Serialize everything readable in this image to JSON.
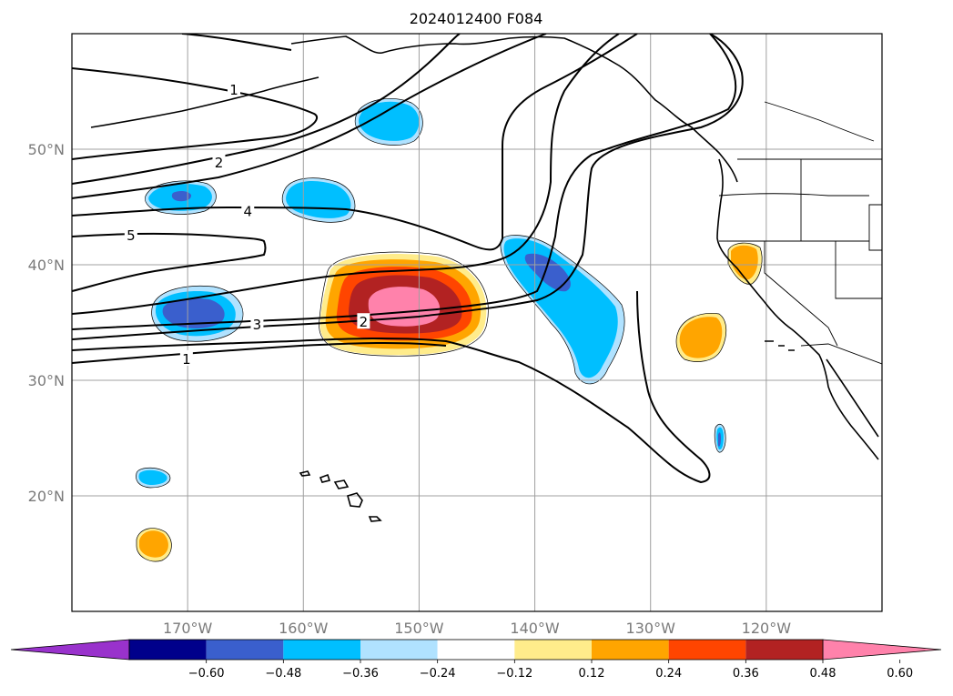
{
  "title": "2024012400 F084",
  "map": {
    "lon_range": [
      -180,
      -110
    ],
    "lat_range": [
      10,
      60
    ],
    "lat_ticks": [
      {
        "v": 20,
        "label": "20°N"
      },
      {
        "v": 30,
        "label": "30°N"
      },
      {
        "v": 40,
        "label": "40°N"
      },
      {
        "v": 50,
        "label": "50°N"
      }
    ],
    "lon_ticks": [
      {
        "v": -170,
        "label": "170°W"
      },
      {
        "v": -160,
        "label": "160°W"
      },
      {
        "v": -150,
        "label": "150°W"
      },
      {
        "v": -140,
        "label": "140°W"
      },
      {
        "v": -130,
        "label": "130°W"
      },
      {
        "v": -120,
        "label": "120°W"
      }
    ],
    "contour_labels": [
      {
        "text": "1",
        "lon": -166.0,
        "lat": 55.2
      },
      {
        "text": "2",
        "lon": -167.3,
        "lat": 48.9
      },
      {
        "text": "4",
        "lon": -164.8,
        "lat": 44.7
      },
      {
        "text": "5",
        "lon": -174.9,
        "lat": 42.6
      },
      {
        "text": "3",
        "lon": -164.0,
        "lat": 34.9
      },
      {
        "text": "2",
        "lon": -154.8,
        "lat": 35.1
      },
      {
        "text": "1",
        "lon": -170.1,
        "lat": 31.9
      }
    ]
  },
  "colorbar": {
    "ticks": [
      "−0.60",
      "−0.48",
      "−0.36",
      "−0.24",
      "−0.12",
      "0.12",
      "0.24",
      "0.36",
      "0.48",
      "0.60"
    ],
    "colors": [
      "#9932cc",
      "#00008b",
      "#3a5fcd",
      "#00bfff",
      "#b0e2ff",
      "#ffffff",
      "#ffec8b",
      "#ffa500",
      "#ff4500",
      "#b22222",
      "#ff82ab"
    ]
  }
}
